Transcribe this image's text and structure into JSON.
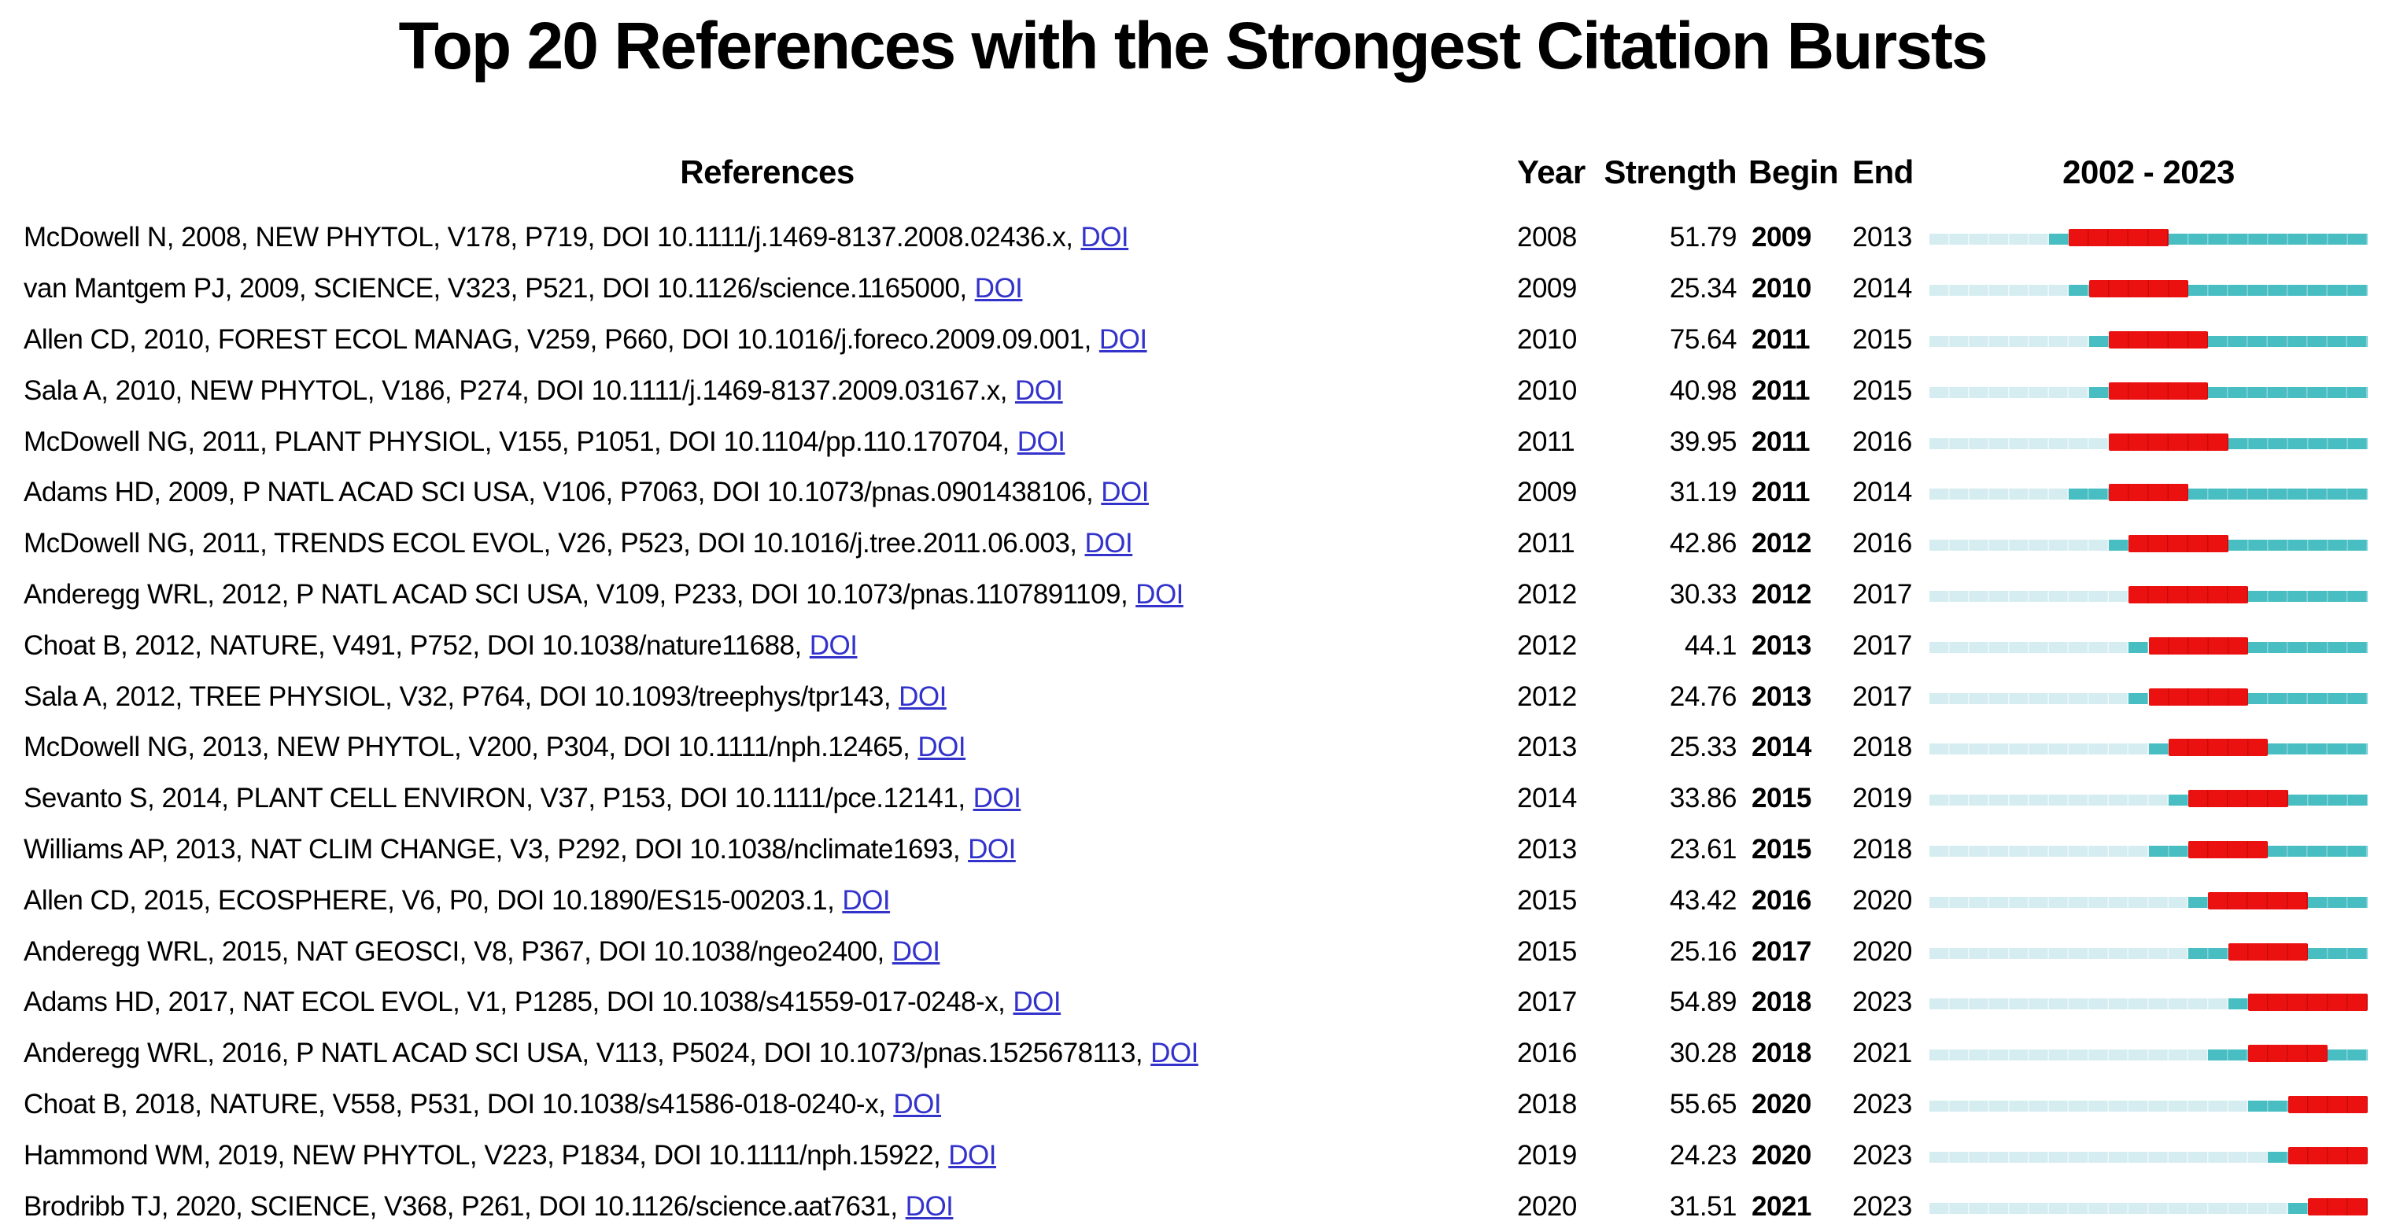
{
  "title": "Top 20 References with the Strongest Citation Bursts",
  "header": {
    "references": "References",
    "year": "Year",
    "strength": "Strength",
    "begin": "Begin",
    "end": "End",
    "range": "2002 - 2023"
  },
  "link_label": "DOI",
  "colors": {
    "burst_red": "#ec1111",
    "active_teal": "#48bec3",
    "inactive_cyan": "#d5edf0",
    "link_blue": "#3333cc",
    "text": "#000000"
  },
  "chart_data": {
    "type": "table",
    "title": "Top 20 References with the Strongest Citation Bursts",
    "timeline": {
      "start_year": 2002,
      "end_year": 2023,
      "label": "2002 - 2023"
    },
    "columns": [
      "References",
      "Year",
      "Strength",
      "Begin",
      "End",
      "2002 - 2023"
    ],
    "rows": [
      {
        "ref": "McDowell N, 2008, NEW PHYTOL, V178, P719, DOI 10.1111/j.1469-8137.2008.02436.x,",
        "year": 2008,
        "strength": "51.79",
        "begin": 2009,
        "end": 2013
      },
      {
        "ref": "van Mantgem PJ, 2009, SCIENCE, V323, P521, DOI 10.1126/science.1165000,",
        "year": 2009,
        "strength": "25.34",
        "begin": 2010,
        "end": 2014
      },
      {
        "ref": "Allen CD, 2010, FOREST ECOL MANAG, V259, P660, DOI 10.1016/j.foreco.2009.09.001,",
        "year": 2010,
        "strength": "75.64",
        "begin": 2011,
        "end": 2015
      },
      {
        "ref": "Sala A, 2010, NEW PHYTOL, V186, P274, DOI 10.1111/j.1469-8137.2009.03167.x,",
        "year": 2010,
        "strength": "40.98",
        "begin": 2011,
        "end": 2015
      },
      {
        "ref": "McDowell NG, 2011, PLANT PHYSIOL, V155, P1051, DOI 10.1104/pp.110.170704,",
        "year": 2011,
        "strength": "39.95",
        "begin": 2011,
        "end": 2016
      },
      {
        "ref": "Adams HD, 2009, P NATL ACAD SCI USA, V106, P7063, DOI 10.1073/pnas.0901438106,",
        "year": 2009,
        "strength": "31.19",
        "begin": 2011,
        "end": 2014
      },
      {
        "ref": "McDowell NG, 2011, TRENDS ECOL EVOL, V26, P523, DOI 10.1016/j.tree.2011.06.003,",
        "year": 2011,
        "strength": "42.86",
        "begin": 2012,
        "end": 2016
      },
      {
        "ref": "Anderegg WRL, 2012, P NATL ACAD SCI USA, V109, P233, DOI 10.1073/pnas.1107891109,",
        "year": 2012,
        "strength": "30.33",
        "begin": 2012,
        "end": 2017
      },
      {
        "ref": "Choat B, 2012, NATURE, V491, P752, DOI 10.1038/nature11688,",
        "year": 2012,
        "strength": "44.1",
        "begin": 2013,
        "end": 2017
      },
      {
        "ref": "Sala A, 2012, TREE PHYSIOL, V32, P764, DOI 10.1093/treephys/tpr143,",
        "year": 2012,
        "strength": "24.76",
        "begin": 2013,
        "end": 2017
      },
      {
        "ref": "McDowell NG, 2013, NEW PHYTOL, V200, P304, DOI 10.1111/nph.12465,",
        "year": 2013,
        "strength": "25.33",
        "begin": 2014,
        "end": 2018
      },
      {
        "ref": "Sevanto S, 2014, PLANT CELL ENVIRON, V37, P153, DOI 10.1111/pce.12141,",
        "year": 2014,
        "strength": "33.86",
        "begin": 2015,
        "end": 2019
      },
      {
        "ref": "Williams AP, 2013, NAT CLIM CHANGE, V3, P292, DOI 10.1038/nclimate1693,",
        "year": 2013,
        "strength": "23.61",
        "begin": 2015,
        "end": 2018
      },
      {
        "ref": "Allen CD, 2015, ECOSPHERE, V6, P0, DOI 10.1890/ES15-00203.1,",
        "year": 2015,
        "strength": "43.42",
        "begin": 2016,
        "end": 2020
      },
      {
        "ref": "Anderegg WRL, 2015, NAT GEOSCI, V8, P367, DOI 10.1038/ngeo2400,",
        "year": 2015,
        "strength": "25.16",
        "begin": 2017,
        "end": 2020
      },
      {
        "ref": "Adams HD, 2017, NAT ECOL EVOL, V1, P1285, DOI 10.1038/s41559-017-0248-x,",
        "year": 2017,
        "strength": "54.89",
        "begin": 2018,
        "end": 2023
      },
      {
        "ref": "Anderegg WRL, 2016, P NATL ACAD SCI USA, V113, P5024, DOI 10.1073/pnas.1525678113,",
        "year": 2016,
        "strength": "30.28",
        "begin": 2018,
        "end": 2021
      },
      {
        "ref": "Choat B, 2018, NATURE, V558, P531, DOI 10.1038/s41586-018-0240-x,",
        "year": 2018,
        "strength": "55.65",
        "begin": 2020,
        "end": 2023
      },
      {
        "ref": "Hammond WM, 2019, NEW PHYTOL, V223, P1834, DOI 10.1111/nph.15922,",
        "year": 2019,
        "strength": "24.23",
        "begin": 2020,
        "end": 2023
      },
      {
        "ref": "Brodribb TJ, 2020, SCIENCE, V368, P261, DOI 10.1126/science.aat7631,",
        "year": 2020,
        "strength": "31.51",
        "begin": 2021,
        "end": 2023
      }
    ]
  }
}
